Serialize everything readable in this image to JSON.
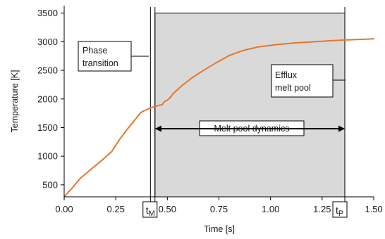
{
  "chart_data": {
    "type": "line",
    "title": "",
    "xlabel": "Time [s]",
    "ylabel": "Temperature [K]",
    "xlim": [
      0,
      1.5
    ],
    "ylim": [
      290,
      3520
    ],
    "grid": false,
    "x_ticks": [
      0,
      0.25,
      0.5,
      0.75,
      1.0,
      1.25,
      1.5
    ],
    "x_tick_labels": [
      "0.00",
      "0.25",
      "0.50",
      "0.75",
      "1.00",
      "1.25",
      "1.50"
    ],
    "y_ticks": [
      500,
      1000,
      1500,
      2000,
      2500,
      3000,
      3500
    ],
    "y_tick_labels": [
      "500",
      "1000",
      "1500",
      "2000",
      "2500",
      "3000",
      "3500"
    ],
    "series": [
      {
        "name": "",
        "color": "#e8762b",
        "x": [
          0.0,
          0.04,
          0.08,
          0.13,
          0.18,
          0.23,
          0.27,
          0.31,
          0.34,
          0.37,
          0.385,
          0.41,
          0.44,
          0.475,
          0.485,
          0.5,
          0.51,
          0.53,
          0.57,
          0.62,
          0.68,
          0.74,
          0.8,
          0.87,
          0.94,
          1.03,
          1.12,
          1.22,
          1.3,
          1.36,
          1.43,
          1.5
        ],
        "y": [
          290,
          450,
          620,
          770,
          920,
          1080,
          1300,
          1490,
          1620,
          1760,
          1790,
          1830,
          1870,
          1900,
          1950,
          1980,
          2010,
          2100,
          2230,
          2370,
          2510,
          2640,
          2760,
          2850,
          2910,
          2950,
          2980,
          3000,
          3020,
          3030,
          3040,
          3050
        ]
      }
    ],
    "regions": [
      {
        "name": "melt-pool-region",
        "x_start": 0.44,
        "x_end": 1.36,
        "y_start": 290,
        "y_end": 3500,
        "color": "#d9d9d9"
      }
    ],
    "vlines": [
      {
        "name": "phase-transition-line",
        "x": 0.418
      },
      {
        "name": "tm-line",
        "x": 0.44
      },
      {
        "name": "tp-line",
        "x": 1.36
      }
    ],
    "markers": {
      "tm": {
        "label": "t",
        "sub": "M",
        "x": 0.44
      },
      "tp": {
        "label": "t",
        "sub": "P",
        "x": 1.36
      }
    },
    "annotations": {
      "phase_transition": [
        "Phase",
        "transition"
      ],
      "efflux": [
        "Efflux",
        "melt pool"
      ],
      "dynamics": "Melt pool dynamics"
    },
    "dynamics_arrow_y": 1480
  }
}
